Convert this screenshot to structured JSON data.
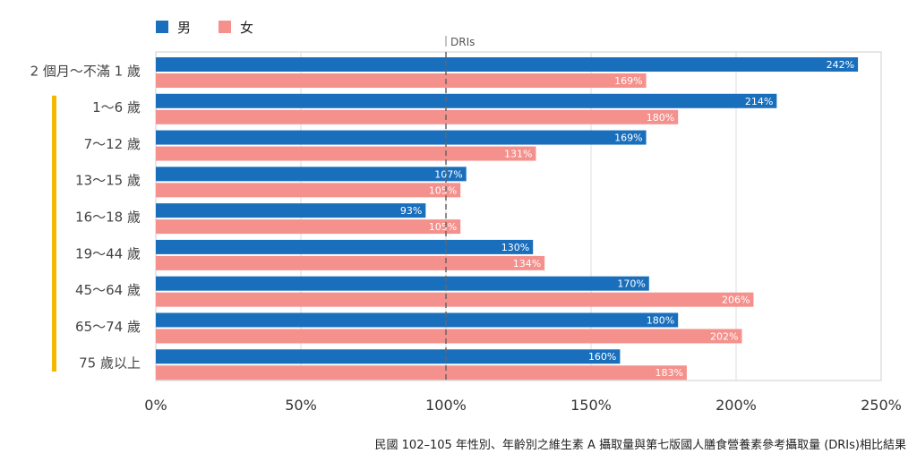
{
  "chart_data": {
    "type": "bar",
    "orientation": "horizontal",
    "categories": [
      "2 個月～不滿 1 歲",
      "1～6 歲",
      "7～12 歲",
      "13～15 歲",
      "16～18 歲",
      "19～44 歲",
      "45～64 歲",
      "65～74 歲",
      "75 歲以上"
    ],
    "series": [
      {
        "name": "男",
        "color": "#1a6fbd",
        "values": [
          242,
          214,
          169,
          107,
          93,
          130,
          170,
          180,
          160
        ]
      },
      {
        "name": "女",
        "color": "#f4918d",
        "values": [
          169,
          180,
          131,
          105,
          105,
          134,
          206,
          202,
          183
        ]
      }
    ],
    "value_labels": {
      "男": [
        "242%",
        "214%",
        "169%",
        "107%",
        "93%",
        "130%",
        "170%",
        "180%",
        "160%"
      ],
      "女": [
        "169%",
        "180%",
        "131%",
        "105%",
        "105%",
        "134%",
        "206%",
        "202%",
        "183%"
      ]
    },
    "xlim": [
      0,
      250
    ],
    "xticks": [
      0,
      50,
      100,
      150,
      200,
      250
    ],
    "xtick_labels": [
      "0%",
      "50%",
      "100%",
      "150%",
      "200%",
      "250%"
    ],
    "reference_line": {
      "value": 100,
      "label": "DRIs"
    },
    "highlight_bracket_color": "#f5b800",
    "grid": true,
    "legend_position": "top-left"
  },
  "caption": "民國 102–105 年性別、年齡別之維生素 A 攝取量與第七版國人膳食營養素參考攝取量 (DRIs)相比結果"
}
